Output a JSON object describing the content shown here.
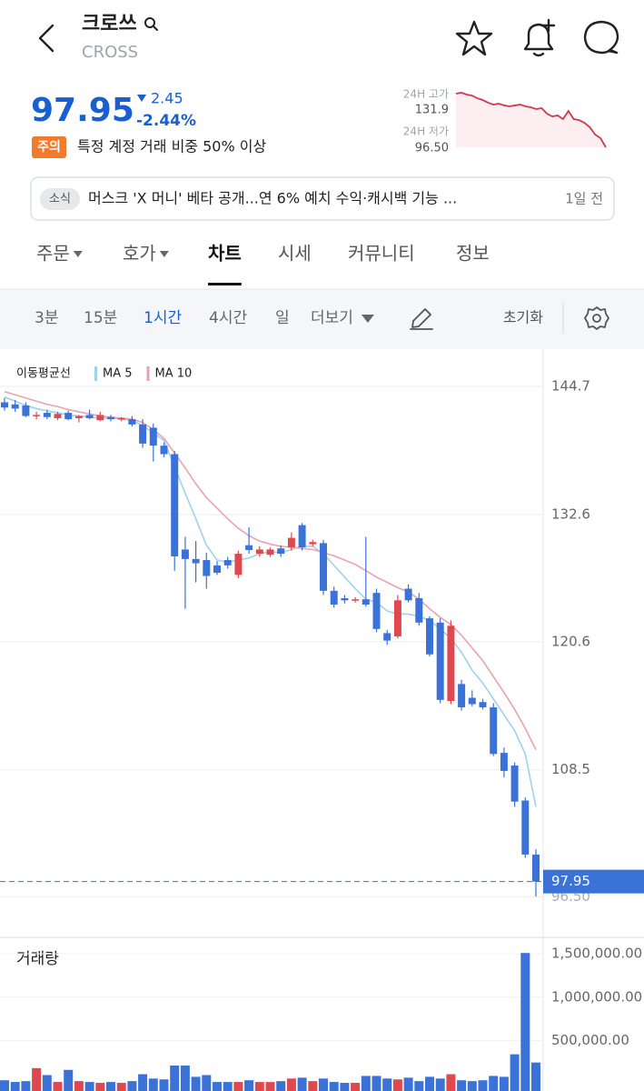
{
  "header": {
    "name": "크로쓰",
    "symbol": "CROSS"
  },
  "price": {
    "value": 97.95,
    "change": 2.45,
    "change_pct": {
      "value": -2.44,
      "label": "-2.44%"
    },
    "caution": "주의",
    "caution_text": "특정 계정 거래 비중 50% 이상"
  },
  "sparkline": {
    "high_label": "24H 고가",
    "high": 131.9,
    "low_label": "24H 저가",
    "low": {
      "value": 96.5,
      "label": "96.50"
    },
    "color": "#d0384f",
    "values": [
      130.2,
      130.8,
      129.6,
      129.0,
      127.3,
      126.2,
      124.5,
      123.3,
      123.9,
      122.8,
      122.2,
      122.8,
      123.3,
      122.2,
      121.6,
      120.5,
      121.1,
      117.6,
      115.9,
      116.5,
      114.2,
      119.3,
      114.2,
      113.6,
      111.9,
      109.1,
      104.5,
      102.2,
      96.5
    ]
  },
  "news": {
    "tag": "소식",
    "text": "머스크 'X 머니' 베타 공개...연 6% 예치 수익·캐시백 기능 ...",
    "time": "1일 전"
  },
  "tabs": [
    "주문",
    "호가",
    "차트",
    "시세",
    "커뮤니티",
    "정보"
  ],
  "active_tab": 2,
  "intervals": [
    "3분",
    "15분",
    "1시간",
    "4시간",
    "일",
    "더보기"
  ],
  "active_interval": 2,
  "reset": "초기화",
  "chart_data": {
    "type": "candlestick",
    "legend_title": "이동평균선",
    "up_color": "#e04850",
    "down_color": "#3a72d8",
    "open": [
      143.2,
      143.0,
      142.9,
      141.9,
      142.2,
      141.7,
      142.2,
      141.7,
      142.0,
      141.5,
      141.8,
      141.6,
      141.6,
      141.1,
      140.8,
      139.1,
      138.3,
      129.3,
      128.4,
      128.3,
      127.8,
      128.3,
      126.9,
      129.7,
      128.9,
      128.8,
      129.4,
      129.5,
      131.6,
      129.8,
      129.9,
      125.4,
      124.7,
      124.5,
      124.6,
      125.2,
      121.4,
      121.1,
      125.6,
      124.7,
      122.8,
      122.4,
      115.0,
      116.6,
      115.3,
      114.9,
      114.4,
      110.1,
      108.9,
      105.6,
      100.5
    ],
    "high": [
      143.6,
      143.4,
      143.2,
      142.3,
      142.5,
      142.3,
      142.4,
      142.0,
      142.5,
      142.3,
      142.0,
      141.8,
      141.9,
      141.6,
      141.2,
      139.4,
      138.6,
      130.5,
      130.1,
      129.0,
      128.2,
      128.6,
      129.2,
      131.4,
      129.6,
      129.5,
      129.7,
      130.9,
      131.8,
      130.2,
      130.2,
      125.8,
      125.0,
      124.8,
      130.5,
      125.6,
      121.7,
      125.0,
      126.0,
      125.2,
      123.0,
      122.8,
      122.6,
      117.0,
      116.0,
      115.2,
      114.8,
      110.6,
      109.2,
      105.9,
      101.0
    ],
    "low": [
      142.4,
      142.3,
      141.8,
      141.6,
      141.6,
      141.5,
      141.5,
      141.3,
      141.6,
      141.4,
      141.4,
      141.4,
      140.9,
      138.9,
      137.6,
      138.0,
      127.3,
      123.7,
      126.2,
      125.6,
      126.9,
      127.5,
      126.6,
      128.9,
      128.6,
      128.6,
      128.6,
      129.2,
      129.2,
      129.6,
      125.0,
      123.8,
      124.2,
      124.3,
      123.9,
      121.5,
      120.3,
      120.9,
      124.3,
      122.1,
      119.2,
      114.8,
      114.7,
      114.1,
      114.5,
      114.2,
      109.8,
      107.8,
      105.0,
      100.2,
      96.5
    ],
    "close": [
      142.7,
      142.6,
      141.9,
      142.0,
      141.8,
      142.1,
      141.6,
      141.9,
      141.7,
      142.0,
      141.6,
      141.7,
      141.1,
      139.3,
      139.1,
      138.3,
      128.65,
      128.4,
      128.0,
      126.8,
      127.1,
      127.8,
      128.9,
      129.25,
      129.3,
      129.3,
      128.9,
      130.4,
      129.5,
      130.0,
      125.4,
      124.1,
      124.5,
      124.6,
      124.1,
      121.8,
      120.7,
      124.5,
      124.5,
      122.4,
      119.4,
      115.1,
      122.1,
      114.4,
      114.7,
      114.4,
      110.0,
      108.4,
      105.5,
      100.5,
      97.95
    ],
    "ylim": [
      92.77,
      148.13
    ],
    "yticks": [
      144.7,
      132.6,
      120.6,
      108.5
    ],
    "grid": true,
    "series": [
      {
        "name": "MA 5",
        "color": "#9fd0ef",
        "values": [
          143.7,
          143.3,
          142.9,
          142.6,
          142.4,
          142.2,
          142.0,
          141.9,
          141.8,
          141.7,
          141.7,
          141.6,
          141.5,
          141.0,
          140.3,
          139.6,
          137.1,
          134.6,
          132.2,
          129.7,
          128.3,
          128.1,
          128.3,
          128.5,
          128.9,
          129.1,
          129.0,
          129.3,
          129.6,
          129.6,
          128.9,
          127.8,
          126.7,
          125.6,
          124.6,
          124.3,
          123.5,
          123.2,
          123.2,
          123.0,
          122.6,
          121.8,
          120.9,
          119.6,
          117.9,
          116.7,
          115.2,
          113.7,
          112.2,
          110.0,
          105.0
        ]
      },
      {
        "name": "MA 10",
        "color": "#eba2ae",
        "values": [
          144.2,
          143.9,
          143.6,
          143.3,
          143.0,
          142.8,
          142.5,
          142.3,
          142.1,
          141.9,
          141.8,
          141.7,
          141.6,
          141.3,
          140.6,
          139.8,
          138.4,
          137.0,
          135.5,
          134.2,
          133.2,
          132.2,
          131.3,
          130.6,
          130.1,
          129.8,
          129.6,
          129.5,
          129.4,
          129.3,
          129.0,
          128.7,
          128.3,
          127.9,
          127.3,
          126.7,
          126.2,
          125.7,
          125.3,
          124.6,
          123.7,
          122.9,
          122.2,
          121.2,
          120.0,
          118.8,
          117.3,
          115.8,
          114.2,
          112.4,
          110.4
        ]
      }
    ],
    "volume": {
      "title": "거래량",
      "values": [
        40000,
        20000,
        30000,
        180000,
        100000,
        20000,
        160000,
        30000,
        20000,
        10000,
        20000,
        10000,
        30000,
        110000,
        60000,
        50000,
        210000,
        210000,
        80000,
        100000,
        20000,
        20000,
        20000,
        40000,
        20000,
        20000,
        30000,
        60000,
        70000,
        30000,
        60000,
        20000,
        10000,
        10000,
        90000,
        90000,
        60000,
        50000,
        70000,
        30000,
        80000,
        60000,
        110000,
        40000,
        30000,
        40000,
        90000,
        80000,
        340000,
        1510000,
        245000
      ],
      "ylim": [
        0,
        1680000
      ],
      "yticks": [
        {
          "value": 1500000,
          "label": "1,500,000.00"
        },
        {
          "value": 1000000,
          "label": "1,000,000.00"
        },
        {
          "value": 500000,
          "label": "500,000.00"
        }
      ]
    }
  }
}
